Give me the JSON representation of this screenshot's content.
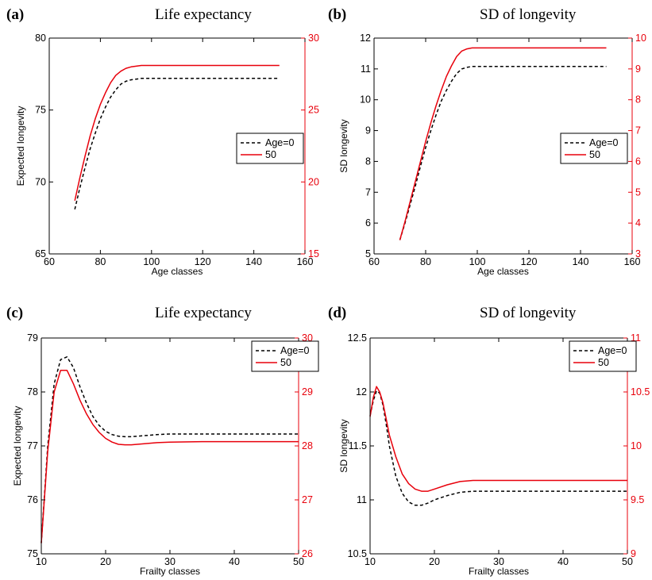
{
  "colors": {
    "left_axis": "#000000",
    "right_axis": "#e8000b",
    "series_age0": "#000000",
    "series_50": "#e8000b"
  },
  "chart_data": [
    {
      "type": "line",
      "panel_letter": "(a)",
      "title": "Life expectancy",
      "xlabel": "Age classes",
      "ylabel": "Expected longevity",
      "xlim": [
        60,
        160
      ],
      "ylim_left": [
        65,
        80
      ],
      "ylim_right": [
        15,
        30
      ],
      "x_ticks": [
        "60",
        "80",
        "100",
        "120",
        "140",
        "160"
      ],
      "y_ticks_left": [
        "65",
        "70",
        "75",
        "80"
      ],
      "y_ticks_right": [
        "15",
        "20",
        "25",
        "30"
      ],
      "legend": {
        "position": "right-middle",
        "entries": [
          "Age=0",
          "50"
        ]
      },
      "series": [
        {
          "name": "Age=0",
          "axis": "left",
          "style": "dashed",
          "x": [
            70,
            72,
            74,
            76,
            78,
            80,
            82,
            84,
            86,
            88,
            90,
            92,
            94,
            96,
            98,
            100,
            110,
            120,
            130,
            140,
            150
          ],
          "y": [
            68.1,
            69.6,
            71.0,
            72.3,
            73.4,
            74.4,
            75.2,
            75.9,
            76.4,
            76.8,
            77.0,
            77.1,
            77.15,
            77.2,
            77.2,
            77.2,
            77.2,
            77.2,
            77.2,
            77.2,
            77.2
          ]
        },
        {
          "name": "50",
          "axis": "right",
          "style": "solid",
          "x": [
            70,
            72,
            74,
            76,
            78,
            80,
            82,
            84,
            86,
            88,
            90,
            92,
            94,
            96,
            98,
            100,
            110,
            120,
            130,
            140,
            150
          ],
          "y": [
            18.7,
            20.3,
            21.8,
            23.2,
            24.4,
            25.4,
            26.2,
            26.9,
            27.4,
            27.7,
            27.9,
            28.0,
            28.05,
            28.1,
            28.1,
            28.1,
            28.1,
            28.1,
            28.1,
            28.1,
            28.1
          ]
        }
      ]
    },
    {
      "type": "line",
      "panel_letter": "(b)",
      "title": "SD of longevity",
      "xlabel": "Age classes",
      "ylabel": "SD longevity",
      "xlim": [
        60,
        160
      ],
      "ylim_left": [
        5,
        12
      ],
      "ylim_right": [
        3,
        10
      ],
      "x_ticks": [
        "60",
        "80",
        "100",
        "120",
        "140",
        "160"
      ],
      "y_ticks_left": [
        "5",
        "6",
        "7",
        "8",
        "9",
        "10",
        "11",
        "12"
      ],
      "y_ticks_right": [
        "3",
        "4",
        "5",
        "6",
        "7",
        "8",
        "9",
        "10"
      ],
      "legend": {
        "position": "right-middle",
        "entries": [
          "Age=0",
          "50"
        ]
      },
      "series": [
        {
          "name": "Age=0",
          "axis": "left",
          "style": "dashed",
          "x": [
            70,
            72,
            74,
            76,
            78,
            80,
            82,
            84,
            86,
            88,
            90,
            92,
            94,
            96,
            98,
            100,
            110,
            120,
            130,
            140,
            150
          ],
          "y": [
            5.45,
            6.0,
            6.6,
            7.2,
            7.85,
            8.45,
            9.0,
            9.5,
            9.95,
            10.3,
            10.6,
            10.85,
            11.0,
            11.05,
            11.08,
            11.08,
            11.08,
            11.08,
            11.08,
            11.08,
            11.08
          ]
        },
        {
          "name": "50",
          "axis": "right",
          "style": "solid",
          "x": [
            70,
            72,
            74,
            76,
            78,
            80,
            82,
            84,
            86,
            88,
            90,
            92,
            94,
            96,
            98,
            100,
            110,
            120,
            130,
            140,
            150
          ],
          "y": [
            3.45,
            4.05,
            4.7,
            5.35,
            6.0,
            6.65,
            7.25,
            7.8,
            8.3,
            8.75,
            9.1,
            9.4,
            9.58,
            9.65,
            9.68,
            9.68,
            9.68,
            9.68,
            9.68,
            9.68,
            9.68
          ]
        }
      ]
    },
    {
      "type": "line",
      "panel_letter": "(c)",
      "title": "Life expectancy",
      "xlabel": "Frailty classes",
      "ylabel": "Expected longevity",
      "xlim": [
        10,
        50
      ],
      "ylim_left": [
        75,
        79
      ],
      "ylim_right": [
        26,
        30
      ],
      "x_ticks": [
        "10",
        "20",
        "30",
        "40",
        "50"
      ],
      "y_ticks_left": [
        "75",
        "76",
        "77",
        "78",
        "79"
      ],
      "y_ticks_right": [
        "26",
        "27",
        "28",
        "29",
        "30"
      ],
      "legend": {
        "position": "top-right",
        "entries": [
          "Age=0",
          "50"
        ]
      },
      "series": [
        {
          "name": "Age=0",
          "axis": "left",
          "style": "dashed",
          "x": [
            10,
            11,
            12,
            13,
            14,
            15,
            16,
            17,
            18,
            19,
            20,
            21,
            22,
            23,
            24,
            26,
            28,
            30,
            35,
            40,
            45,
            50
          ],
          "y": [
            75.2,
            77.0,
            78.15,
            78.6,
            78.65,
            78.45,
            78.1,
            77.8,
            77.55,
            77.38,
            77.27,
            77.21,
            77.18,
            77.17,
            77.17,
            77.19,
            77.21,
            77.22,
            77.22,
            77.22,
            77.22,
            77.22
          ]
        },
        {
          "name": "50",
          "axis": "right",
          "style": "solid",
          "x": [
            10,
            11,
            12,
            13,
            14,
            15,
            16,
            17,
            18,
            19,
            20,
            21,
            22,
            23,
            24,
            26,
            28,
            30,
            35,
            40,
            45,
            50
          ],
          "y": [
            26.2,
            27.9,
            29.0,
            29.4,
            29.4,
            29.15,
            28.85,
            28.6,
            28.4,
            28.25,
            28.14,
            28.07,
            28.03,
            28.02,
            28.02,
            28.04,
            28.06,
            28.07,
            28.08,
            28.08,
            28.08,
            28.08
          ]
        }
      ]
    },
    {
      "type": "line",
      "panel_letter": "(d)",
      "title": "SD of longevity",
      "xlabel": "Frailty classes",
      "ylabel": "SD longevity",
      "xlim": [
        10,
        50
      ],
      "ylim_left": [
        10.5,
        12.5
      ],
      "ylim_right": [
        9,
        11
      ],
      "x_ticks": [
        "10",
        "20",
        "30",
        "40",
        "50"
      ],
      "y_ticks_left": [
        "10.5",
        "11",
        "11.5",
        "12",
        "12.5"
      ],
      "y_ticks_right": [
        "9",
        "9.5",
        "10",
        "10.5",
        "11"
      ],
      "legend": {
        "position": "top-right",
        "entries": [
          "Age=0",
          "50"
        ]
      },
      "series": [
        {
          "name": "Age=0",
          "axis": "left",
          "style": "dashed",
          "x": [
            10,
            10.5,
            11,
            11.5,
            12,
            12.5,
            13,
            14,
            15,
            16,
            17,
            18,
            19,
            20,
            22,
            24,
            26,
            28,
            30,
            35,
            40,
            45,
            50
          ],
          "y": [
            11.78,
            11.92,
            12.01,
            11.99,
            11.88,
            11.7,
            11.5,
            11.22,
            11.06,
            10.98,
            10.95,
            10.95,
            10.97,
            11.0,
            11.04,
            11.07,
            11.08,
            11.08,
            11.08,
            11.08,
            11.08,
            11.08,
            11.08
          ]
        },
        {
          "name": "50",
          "axis": "right",
          "style": "solid",
          "x": [
            10,
            10.5,
            11,
            11.5,
            12,
            12.5,
            13,
            14,
            15,
            16,
            17,
            18,
            19,
            20,
            22,
            24,
            26,
            28,
            30,
            35,
            40,
            45,
            50
          ],
          "y": [
            10.27,
            10.45,
            10.55,
            10.5,
            10.4,
            10.25,
            10.1,
            9.9,
            9.74,
            9.65,
            9.6,
            9.58,
            9.58,
            9.6,
            9.64,
            9.67,
            9.68,
            9.68,
            9.68,
            9.68,
            9.68,
            9.68,
            9.68
          ]
        }
      ]
    }
  ]
}
